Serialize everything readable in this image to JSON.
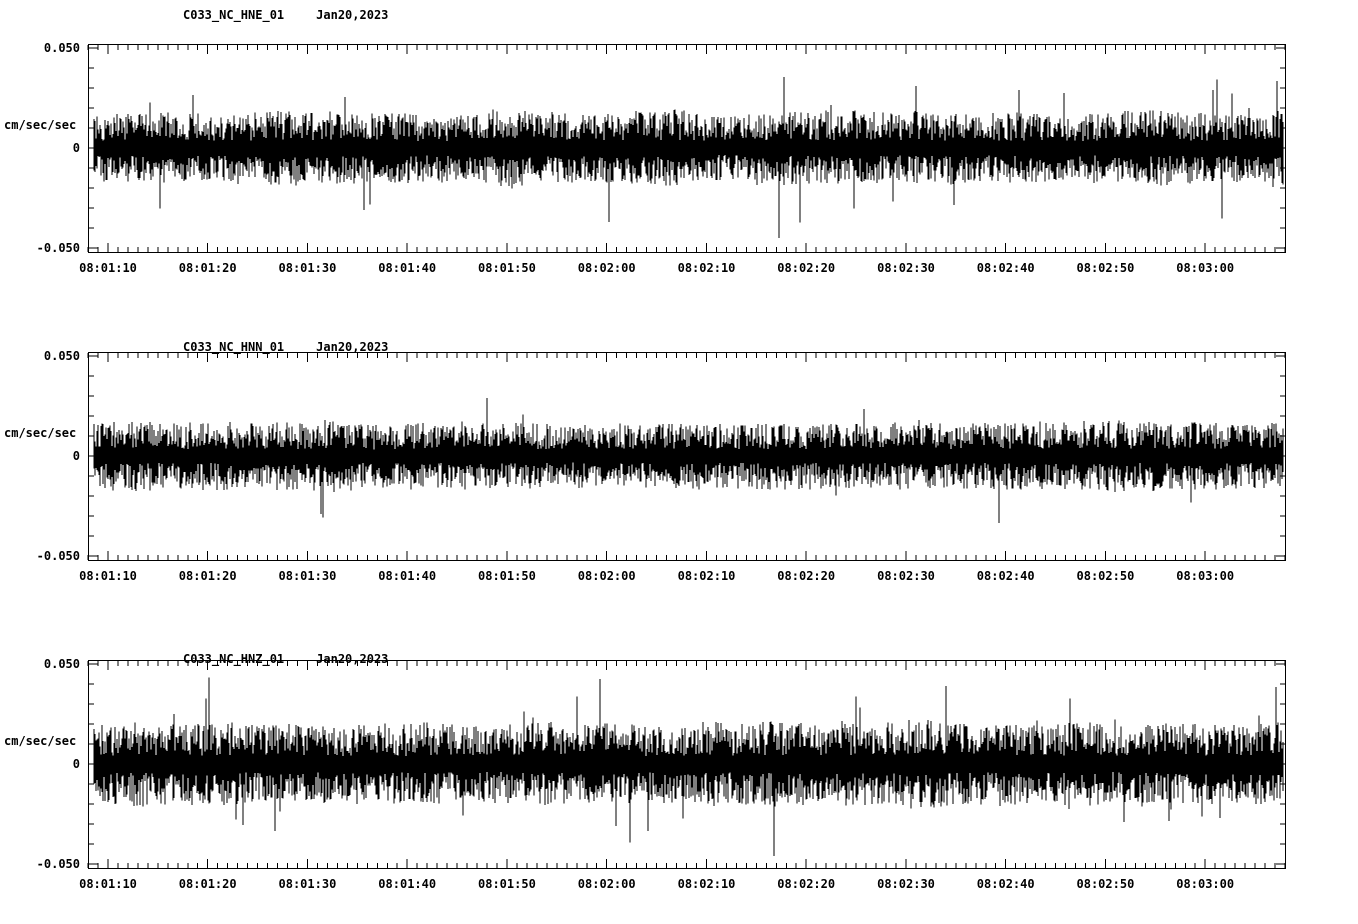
{
  "page": {
    "background": "#ffffff",
    "foreground": "#000000",
    "description": "Three stacked strong-motion seismogram noise traces for station C033 (NC network), channels HNE, HNN, HNZ"
  },
  "chart_data": [
    {
      "type": "line",
      "subtype": "seismogram",
      "station": "C033_NC_HNE_01",
      "date": "Jan20,2023",
      "ylabel": "cm/sec/sec",
      "ylim": [
        -0.052,
        0.052
      ],
      "yticks": [
        {
          "value": 0.05,
          "label": "0.050"
        },
        {
          "value": 0,
          "label": "0"
        },
        {
          "value": -0.05,
          "label": "-0.050"
        }
      ],
      "y_minor_step": 0.01,
      "xlim": [
        "08:01:08",
        "08:03:08"
      ],
      "xticks": [
        "08:01:10",
        "08:01:20",
        "08:01:30",
        "08:01:40",
        "08:01:50",
        "08:02:00",
        "08:02:10",
        "08:02:20",
        "08:02:30",
        "08:02:40",
        "08:02:50",
        "08:03:00"
      ],
      "x_major_interval_sec": 10,
      "x_minor_interval_sec": 1,
      "grid": false,
      "legend": false,
      "trace_color": "#000000",
      "noise": {
        "description": "continuous broadband ambient noise, zero mean, no visible event onset",
        "seed": 101,
        "amplitude_cm_s2": 0.015,
        "spike_probability": 0.028,
        "spike_scale_max": 2.7,
        "peak_amplitude_cm_s2": 0.046
      }
    },
    {
      "type": "line",
      "subtype": "seismogram",
      "station": "C033_NC_HNN_01",
      "date": "Jan20,2023",
      "ylabel": "cm/sec/sec",
      "ylim": [
        -0.052,
        0.052
      ],
      "yticks": [
        {
          "value": 0.05,
          "label": "0.050"
        },
        {
          "value": 0,
          "label": "0"
        },
        {
          "value": -0.05,
          "label": "-0.050"
        }
      ],
      "y_minor_step": 0.01,
      "xlim": [
        "08:01:08",
        "08:03:08"
      ],
      "xticks": [
        "08:01:10",
        "08:01:20",
        "08:01:30",
        "08:01:40",
        "08:01:50",
        "08:02:00",
        "08:02:10",
        "08:02:20",
        "08:02:30",
        "08:02:40",
        "08:02:50",
        "08:03:00"
      ],
      "x_major_interval_sec": 10,
      "x_minor_interval_sec": 1,
      "grid": false,
      "legend": false,
      "trace_color": "#000000",
      "noise": {
        "description": "continuous broadband ambient noise, zero mean, slightly varying envelope",
        "seed": 202,
        "amplitude_cm_s2": 0.014,
        "spike_probability": 0.022,
        "spike_scale_max": 2.5,
        "peak_amplitude_cm_s2": 0.042
      }
    },
    {
      "type": "line",
      "subtype": "seismogram",
      "station": "C033_NC_HNZ_01",
      "date": "Jan20,2023",
      "ylabel": "cm/sec/sec",
      "ylim": [
        -0.052,
        0.052
      ],
      "yticks": [
        {
          "value": 0.05,
          "label": "0.050"
        },
        {
          "value": 0,
          "label": "0"
        },
        {
          "value": -0.05,
          "label": "-0.050"
        }
      ],
      "y_minor_step": 0.01,
      "xlim": [
        "08:01:08",
        "08:03:08"
      ],
      "xticks": [
        "08:01:10",
        "08:01:20",
        "08:01:30",
        "08:01:40",
        "08:01:50",
        "08:02:00",
        "08:02:10",
        "08:02:20",
        "08:02:30",
        "08:02:40",
        "08:02:50",
        "08:03:00"
      ],
      "x_major_interval_sec": 10,
      "x_minor_interval_sec": 1,
      "grid": false,
      "legend": false,
      "trace_color": "#000000",
      "noise": {
        "description": "continuous broadband ambient noise, zero mean, densest of the three components",
        "seed": 303,
        "amplitude_cm_s2": 0.017,
        "spike_probability": 0.034,
        "spike_scale_max": 2.6,
        "peak_amplitude_cm_s2": 0.046
      }
    }
  ]
}
